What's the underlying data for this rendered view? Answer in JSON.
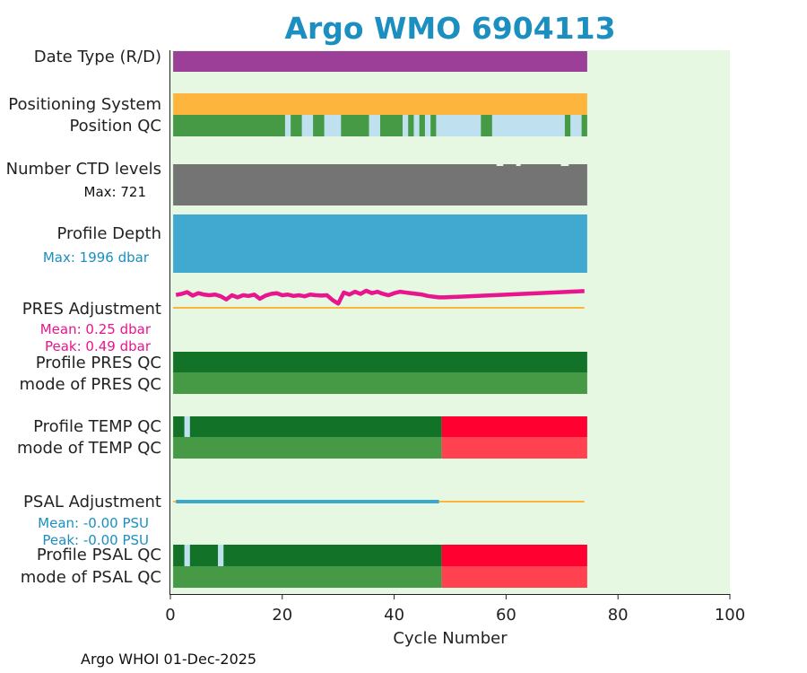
{
  "title": "Argo WMO 6904113",
  "footer": "Argo WHOI 01-Dec-2025",
  "colors": {
    "background": "#e6f8e1",
    "date_type": "#9b3f99",
    "positioning": "#fdb53d",
    "qc_good": "#469a46",
    "qc_light": "#bfe0ee",
    "qc_dark": "#117228",
    "qc_bad": "#ff0031",
    "qc_bad_light": "#ff4150",
    "ctd": "#747474",
    "depth": "#41a9d0",
    "pres_adj": "#e8158e",
    "psal_adj": "#3aa7cc",
    "zero_line": "#fdb53d",
    "title": "#1a8fc0"
  },
  "chart_data": {
    "type": "bar",
    "xlabel": "Cycle Number",
    "xlim": [
      0,
      100
    ],
    "xticks": [
      "0",
      "20",
      "40",
      "60",
      "80",
      "100"
    ],
    "n_cycles": 74,
    "rows": {
      "date_type": {
        "label": "Date Type (R/D)"
      },
      "positioning": {
        "label": "Positioning System"
      },
      "position_qc": {
        "label": "Position QC",
        "light_ranges": [
          [
            20.5,
            21.5
          ],
          [
            23.5,
            25.5
          ],
          [
            27.5,
            30.5
          ],
          [
            35.5,
            37.5
          ],
          [
            41.5,
            42.5
          ],
          [
            43.5,
            44.5
          ],
          [
            45.5,
            46.5
          ],
          [
            47.5,
            55.5
          ],
          [
            57.5,
            70.5
          ],
          [
            71.5,
            73.5
          ]
        ]
      },
      "ctd_levels": {
        "label": "Number CTD levels",
        "sub": "Max: 721",
        "notch_ranges": [
          [
            58.3,
            59.5
          ],
          [
            61.8,
            62.6
          ],
          [
            69.8,
            71.2
          ]
        ]
      },
      "profile_depth": {
        "label": "Profile Depth",
        "sub": "Max: 1996 dbar"
      },
      "pres_adjustment": {
        "label": "PRES Adjustment",
        "sub1": "Mean: 0.25 dbar",
        "sub2": "Peak: 0.49 dbar",
        "x": [
          1,
          2,
          3,
          4,
          5,
          6,
          7,
          8,
          9,
          10,
          11,
          12,
          13,
          14,
          15,
          16,
          17,
          18,
          19,
          20,
          21,
          22,
          23,
          24,
          25,
          26,
          27,
          28,
          29,
          30,
          31,
          32,
          33,
          34,
          35,
          36,
          37,
          38,
          39,
          40,
          41,
          42,
          43,
          44,
          45,
          46,
          47,
          48,
          49,
          74
        ],
        "y": [
          0.37,
          0.4,
          0.45,
          0.35,
          0.42,
          0.38,
          0.36,
          0.38,
          0.33,
          0.24,
          0.36,
          0.3,
          0.36,
          0.34,
          0.38,
          0.26,
          0.35,
          0.4,
          0.42,
          0.36,
          0.38,
          0.34,
          0.36,
          0.33,
          0.38,
          0.36,
          0.35,
          0.36,
          0.22,
          0.12,
          0.44,
          0.38,
          0.46,
          0.4,
          0.49,
          0.42,
          0.46,
          0.4,
          0.36,
          0.42,
          0.46,
          0.44,
          0.42,
          0.4,
          0.38,
          0.34,
          0.32,
          0.3,
          0.3,
          0.48
        ]
      },
      "profile_pres_qc": {
        "label": "Profile PRES QC"
      },
      "mode_pres_qc": {
        "label": "mode of PRES QC"
      },
      "profile_temp_qc": {
        "label": "Profile TEMP QC",
        "light_ranges": [
          [
            2.5,
            3.5
          ]
        ],
        "bad_from": 48.5
      },
      "mode_temp_qc": {
        "label": "mode of TEMP QC",
        "bad_from": 48.5
      },
      "psal_adjustment": {
        "label": "PSAL Adjustment",
        "sub1": "Mean: -0.00 PSU",
        "sub2": "Peak: -0.00 PSU",
        "x": [
          1,
          48
        ],
        "y": [
          0,
          0
        ]
      },
      "profile_psal_qc": {
        "label": "Profile PSAL QC",
        "light_ranges": [
          [
            2.5,
            3.5
          ],
          [
            8.5,
            9.5
          ]
        ],
        "bad_from": 48.5
      },
      "mode_psal_qc": {
        "label": "mode of PSAL QC",
        "bad_from": 48.5
      }
    }
  }
}
